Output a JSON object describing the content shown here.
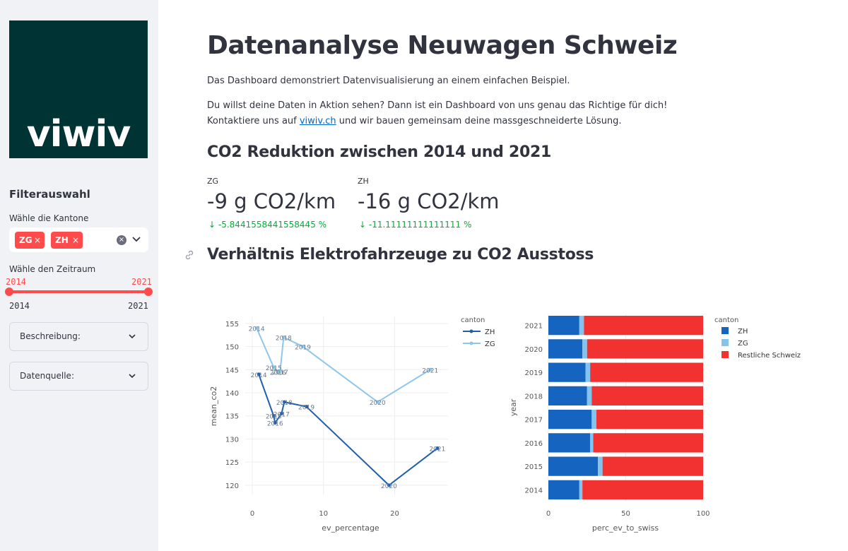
{
  "sidebar": {
    "logo_text": "viwiv",
    "filter_heading": "Filterauswahl",
    "canton_label": "Wähle die Kantone",
    "selected_cantons": [
      {
        "label": "ZG"
      },
      {
        "label": "ZH"
      }
    ],
    "tag_remove_symbol": "×",
    "clear_symbol": "×",
    "timerange_label": "Wähle den Zeitraum",
    "slider": {
      "low": "2014",
      "high": "2021",
      "min": "2014",
      "max": "2021"
    },
    "expanders": [
      {
        "label": "Beschreibung:"
      },
      {
        "label": "Datenquelle:"
      }
    ]
  },
  "main": {
    "title": "Datenanalyse Neuwagen Schweiz",
    "intro": "Das Dashboard demonstriert Datenvisualisierung an einem einfachen Beispiel.",
    "cta_line1": "Du willst deine Daten in Aktion sehen? Dann ist ein Dashboard von uns genau das Richtige für dich!",
    "cta_line2_pre": "Kontaktiere uns auf ",
    "cta_link": "viwiv.ch",
    "cta_line2_post": " und wir bauen gemeinsam deine massgeschneiderte Lösung.",
    "co2_heading": "CO2 Reduktion zwischen 2014 und 2021",
    "metrics": [
      {
        "label": "ZG",
        "value": "-9 g CO2/km",
        "delta": "-5.8441558441558445 %"
      },
      {
        "label": "ZH",
        "value": "-16 g CO2/km",
        "delta": "-11.11111111111111 %"
      }
    ],
    "delta_arrow": "↓",
    "ratio_heading": "Verhältnis Elektrofahrzeuge zu CO2 Ausstoss"
  },
  "chart_data": [
    {
      "type": "line",
      "xlabel": "ev_percentage",
      "ylabel": "mean_co2",
      "xlim": [
        -1,
        27.5
      ],
      "ylim": [
        118,
        156.5
      ],
      "xticks": [
        0,
        10,
        20
      ],
      "yticks": [
        120,
        125,
        130,
        135,
        140,
        145,
        150,
        155
      ],
      "legend_title": "canton",
      "series": [
        {
          "name": "ZH",
          "color": "#1f5fad",
          "points": [
            {
              "x": 0.9,
              "y": 144,
              "label": "2014"
            },
            {
              "x": 3.0,
              "y": 135,
              "label": "2015"
            },
            {
              "x": 3.2,
              "y": 133.5,
              "label": "2016"
            },
            {
              "x": 4.1,
              "y": 135.5,
              "label": "2017"
            },
            {
              "x": 4.5,
              "y": 138,
              "label": "2018"
            },
            {
              "x": 7.6,
              "y": 137,
              "label": "2019"
            },
            {
              "x": 19.2,
              "y": 120,
              "label": "2020"
            },
            {
              "x": 26.0,
              "y": 128,
              "label": "2021"
            }
          ]
        },
        {
          "name": "ZG",
          "color": "#8ec6ec",
          "points": [
            {
              "x": 0.6,
              "y": 154,
              "label": "2014"
            },
            {
              "x": 3.0,
              "y": 145.5,
              "label": "2015"
            },
            {
              "x": 3.6,
              "y": 144.5,
              "label": "2016"
            },
            {
              "x": 3.9,
              "y": 144.6,
              "label": "2017"
            },
            {
              "x": 4.4,
              "y": 152,
              "label": "2018"
            },
            {
              "x": 7.1,
              "y": 150,
              "label": "2019"
            },
            {
              "x": 17.6,
              "y": 138,
              "label": "2020"
            },
            {
              "x": 25.0,
              "y": 145,
              "label": "2021"
            }
          ]
        }
      ]
    },
    {
      "type": "bar",
      "orientation": "horizontal",
      "stacked": true,
      "xlabel": "perc_ev_to_swiss",
      "ylabel": "year",
      "xlim": [
        0,
        100
      ],
      "xticks": [
        0,
        50,
        100
      ],
      "legend_title": "canton",
      "categories": [
        "2021",
        "2020",
        "2019",
        "2018",
        "2017",
        "2016",
        "2015",
        "2014"
      ],
      "series": [
        {
          "name": "ZH",
          "color": "#1565c0",
          "values": [
            20,
            22,
            24,
            25,
            28,
            27,
            32,
            20
          ]
        },
        {
          "name": "ZG",
          "color": "#85c3ef",
          "values": [
            3,
            3,
            3,
            3,
            3,
            2,
            3,
            2
          ]
        },
        {
          "name": "Restliche Schweiz",
          "color": "#f23131",
          "values": [
            77,
            75,
            73,
            72,
            69,
            71,
            65,
            78
          ]
        }
      ]
    }
  ]
}
